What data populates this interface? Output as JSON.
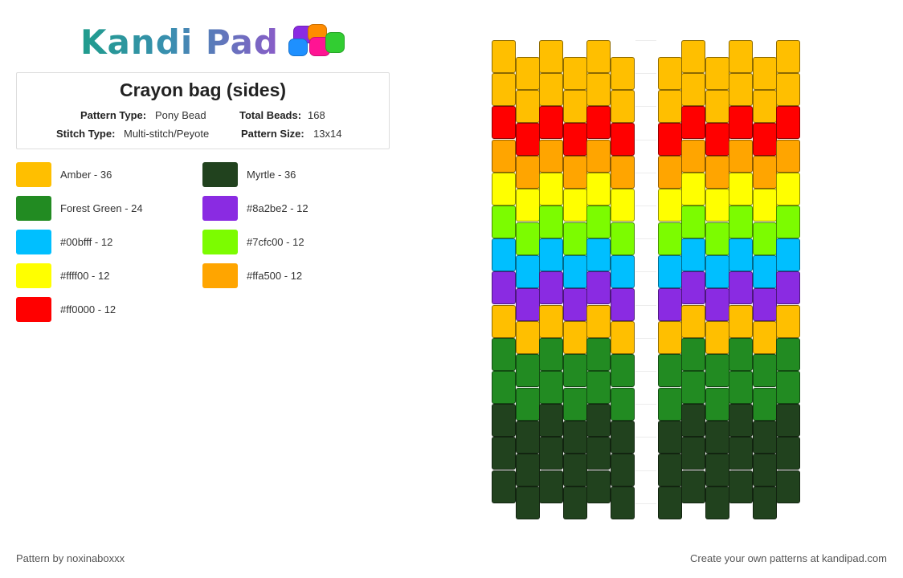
{
  "logo": {
    "text": "Kandi Pad",
    "bead_colors": [
      "#8a2be2",
      "#ff8c00",
      "#1e90ff",
      "#ff1493",
      "#32cd32"
    ]
  },
  "pattern_info": {
    "title": "Crayon bag (sides)",
    "pattern_type_label": "Pattern Type:",
    "pattern_type": "Pony Bead",
    "total_beads_label": "Total Beads:",
    "total_beads": "168",
    "stitch_type_label": "Stitch Type:",
    "stitch_type": "Multi-stitch/Peyote",
    "pattern_size_label": "Pattern Size:",
    "pattern_size": "13x14"
  },
  "legend": [
    {
      "label": "Amber - 36",
      "color": "#ffbf00"
    },
    {
      "label": "Myrtle - 36",
      "color": "#21421e"
    },
    {
      "label": "Forest Green - 24",
      "color": "#228b22"
    },
    {
      "label": "#8a2be2 - 12",
      "color": "#8a2be2"
    },
    {
      "label": "#00bfff - 12",
      "color": "#00bfff"
    },
    {
      "label": "#7cfc00 - 12",
      "color": "#7cfc00"
    },
    {
      "label": "#ffff00 - 12",
      "color": "#ffff00"
    },
    {
      "label": "#ffa500 - 12",
      "color": "#ffa500"
    },
    {
      "label": "#ff0000 - 12",
      "color": "#ff0000"
    }
  ],
  "pattern": {
    "row_colors": [
      "#ffbf00",
      "#ffbf00",
      "#ff0000",
      "#ffa500",
      "#ffff00",
      "#7cfc00",
      "#00bfff",
      "#8a2be2",
      "#ffbf00",
      "#228b22",
      "#228b22",
      "#21421e",
      "#21421e",
      "#21421e"
    ],
    "odd_column_row_colors": [
      "#ffbf00",
      "#ffbf00",
      "#ff0000",
      "#ffa500",
      "#ffff00",
      "#7cfc00",
      "#00bfff",
      "#8a2be2",
      "#ffbf00",
      "#228b22",
      "#228b22",
      "#21421e",
      "#21421e",
      "#21421e"
    ]
  },
  "footer": {
    "author": "Pattern by noxinaboxxx",
    "cta": "Create your own patterns at kandipad.com"
  }
}
